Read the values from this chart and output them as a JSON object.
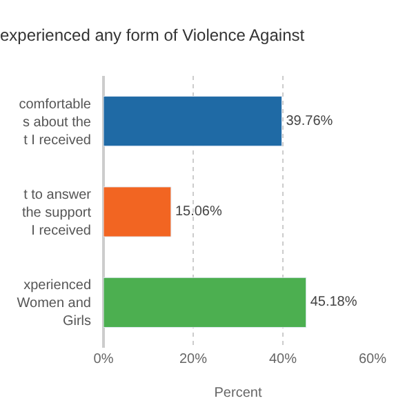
{
  "chart_data": {
    "type": "bar",
    "orientation": "horizontal",
    "title": "experienced any form of Violence Against",
    "xlabel": "Percent",
    "categories": [
      "comfortable\ns about the\nt I received",
      "t to answer\nthe support\nI received",
      "xperienced\nWomen and\nGirls"
    ],
    "values": [
      39.76,
      15.06,
      45.18
    ],
    "colors": [
      "#1f6aa5",
      "#f26522",
      "#4caf50"
    ],
    "value_labels": [
      "39.76%",
      "15.06%",
      "45.18%"
    ],
    "xlim": [
      0,
      60
    ],
    "xticks": [
      {
        "value": 0,
        "label": "0%"
      },
      {
        "value": 20,
        "label": "20%"
      },
      {
        "value": 40,
        "label": "40%"
      },
      {
        "value": 60,
        "label": "60%"
      }
    ],
    "grid": "x",
    "legend": false
  }
}
